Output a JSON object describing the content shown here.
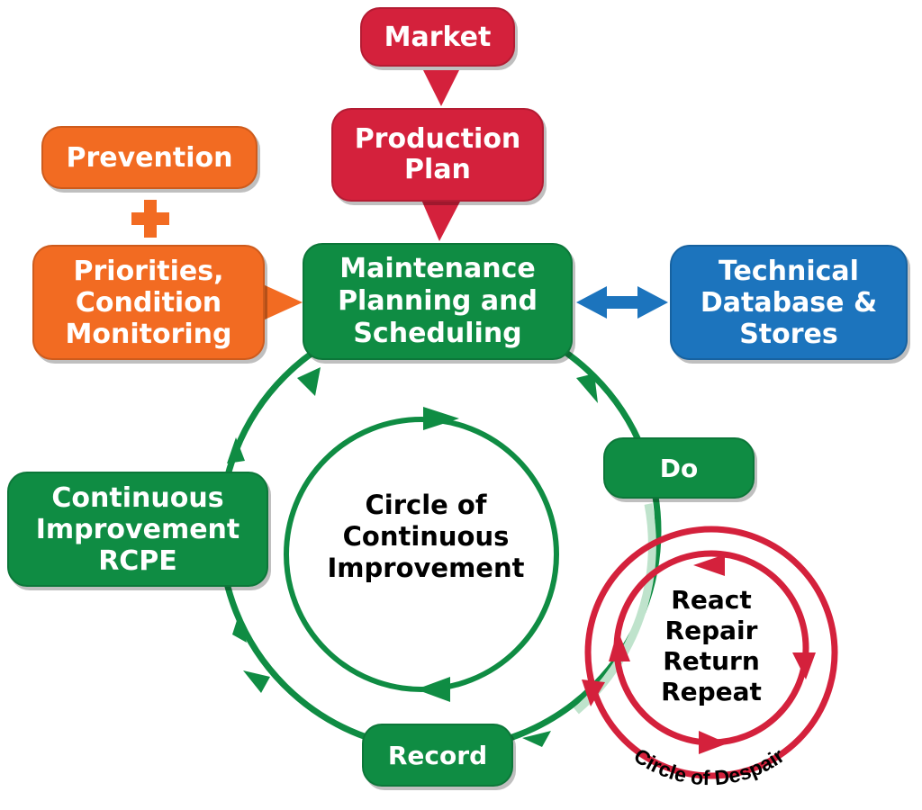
{
  "nodes": {
    "market": "Market",
    "production_plan": "Production\nPlan",
    "prevention": "Prevention",
    "priorities": "Priorities,\nCondition\nMonitoring",
    "maintenance": "Maintenance\nPlanning and\nScheduling",
    "technical_db": "Technical\nDatabase &\nStores",
    "do": "Do",
    "record": "Record",
    "continuous_improvement": "Continuous\nImprovement\nRCPE"
  },
  "labels": {
    "circle_continuous": "Circle of\nContinuous\nImprovement",
    "react_repeat": "React\nRepair\nReturn\nRepeat",
    "circle_despair": "Circle of Despair"
  },
  "colors": {
    "red": "#d4213c",
    "orange": "#f26b22",
    "green": "#0f8c43",
    "blue": "#1c74bd",
    "faded_green": "#bfe3cc"
  }
}
